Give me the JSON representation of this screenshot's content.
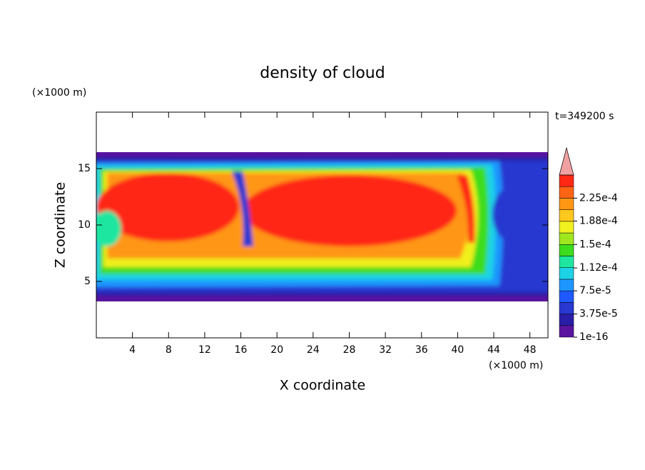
{
  "chart_data": {
    "type": "contour",
    "title": "density of cloud",
    "time_label": "t=349200 s",
    "xlabel": "X coordinate",
    "ylabel": "Z coordinate",
    "x_unit": "(×1000 m)",
    "y_unit": "(×1000 m)",
    "xlim": [
      0,
      50
    ],
    "ylim": [
      0,
      20
    ],
    "xticks": [
      4,
      8,
      12,
      16,
      20,
      24,
      28,
      32,
      36,
      40,
      44,
      48
    ],
    "yticks": [
      5,
      10,
      15
    ],
    "colorbar": {
      "clim": [
        1e-16,
        0.0002625
      ],
      "ticks": [
        {
          "value": 1e-16,
          "label": "1e-16"
        },
        {
          "value": 3.75e-05,
          "label": "3.75e-5"
        },
        {
          "value": 7.5e-05,
          "label": "7.5e-5"
        },
        {
          "value": 0.000112,
          "label": "1.12e-4"
        },
        {
          "value": 0.00015,
          "label": "1.5e-4"
        },
        {
          "value": 0.000188,
          "label": "1.88e-4"
        },
        {
          "value": 0.000225,
          "label": "2.25e-4"
        }
      ],
      "colors": [
        "#5a14a0",
        "#2a1ea8",
        "#2838d0",
        "#1e5aff",
        "#1e96ff",
        "#1ed2e6",
        "#1ee6a0",
        "#3cdc1e",
        "#a0e61e",
        "#f0f01e",
        "#ffc81e",
        "#ff9614",
        "#ff6414",
        "#ff2814"
      ],
      "extend_color": "#f0a0a0"
    }
  }
}
